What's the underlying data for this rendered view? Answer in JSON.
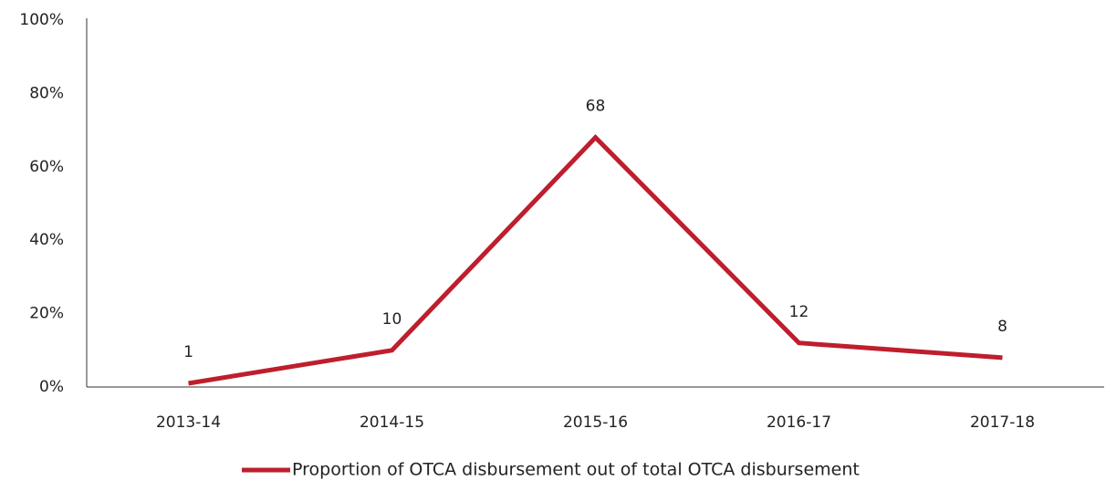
{
  "chart_data": {
    "type": "line",
    "categories": [
      "2013-14",
      "2014-15",
      "2015-16",
      "2016-17",
      "2017-18"
    ],
    "series": [
      {
        "name": "Proportion of OTCA disbursement out of total OTCA disbursement",
        "color": "#be1e2d",
        "values": [
          1,
          10,
          68,
          12,
          8
        ]
      }
    ],
    "ylim": [
      0,
      100
    ],
    "yticks": [
      {
        "value": 0,
        "label": "0%"
      },
      {
        "value": 20,
        "label": "20%"
      },
      {
        "value": 40,
        "label": "40%"
      },
      {
        "value": 60,
        "label": "60%"
      },
      {
        "value": 80,
        "label": "80%"
      },
      {
        "value": 100,
        "label": "100%"
      }
    ],
    "grid": false,
    "legend": "bottom"
  }
}
